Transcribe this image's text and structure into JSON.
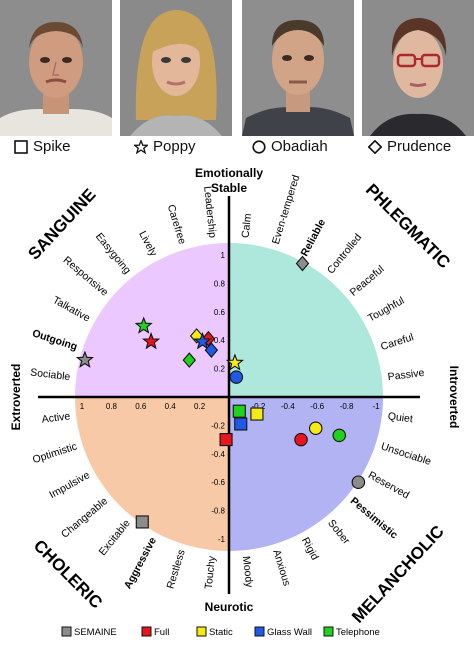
{
  "characters": [
    {
      "name": "Spike",
      "symbol": "square-icon"
    },
    {
      "name": "Poppy",
      "symbol": "star-icon"
    },
    {
      "name": "Obadiah",
      "symbol": "circle-icon"
    },
    {
      "name": "Prudence",
      "symbol": "diamond-icon"
    }
  ],
  "axes": {
    "top": "Emotionally\nStable",
    "bottom": "Neurotic",
    "left": "Extroverted",
    "right": "Introverted",
    "x_ticks": [
      "1",
      "0.8",
      "0.6",
      "0.4",
      "0.2",
      "-0.2",
      "-0.4",
      "-0.6",
      "-0.8",
      "-1"
    ],
    "y_ticks": [
      "1",
      "0.8",
      "0.6",
      "0.4",
      "0.2",
      "-0.2",
      "-0.4",
      "-0.6",
      "-0.8",
      "-1"
    ]
  },
  "quadrants": {
    "sanguine": {
      "title": "SANGUINE",
      "color": "#ebc8ff"
    },
    "phlegmatic": {
      "title": "PHLEGMATIC",
      "color": "#aee8dc"
    },
    "choleric": {
      "title": "CHOLERIC",
      "color": "#f8c9a6"
    },
    "melancholic": {
      "title": "MELANCHOLIC",
      "color": "#b1b3f2"
    }
  },
  "traits": {
    "sanguine": [
      "Sociable",
      "Outgoing",
      "Talkative",
      "Responsive",
      "Easygoing",
      "Lively",
      "Carefree",
      "Leadership"
    ],
    "phlegmatic": [
      "Calm",
      "Even-tempered",
      "Reliable",
      "Controlled",
      "Peaceful",
      "Toughful",
      "Careful",
      "Passive"
    ],
    "melancholic": [
      "Quiet",
      "Unsociable",
      "Reserved",
      "Pessimistic",
      "Sober",
      "Rigid",
      "Anxious",
      "Moody"
    ],
    "choleric": [
      "Touchy",
      "Restless",
      "Aggressive",
      "Excitable",
      "Changeable",
      "Impulsive",
      "Optimistic",
      "Active"
    ]
  },
  "legend": [
    {
      "label": "SEMAINE",
      "color": "#8c8c8c"
    },
    {
      "label": "Full",
      "color": "#e8141e"
    },
    {
      "label": "Static",
      "color": "#f5eb14"
    },
    {
      "label": "Glass Wall",
      "color": "#1e5ae6"
    },
    {
      "label": "Telephone",
      "color": "#1ed21e"
    }
  ],
  "chart_data": {
    "type": "scatter",
    "xlim": [
      1.1,
      -1.1
    ],
    "ylim": [
      -1.1,
      1.1
    ],
    "series": [
      {
        "name": "SEMAINE",
        "points": [
          {
            "character": "Prudence",
            "x": -0.5,
            "y": 0.94
          },
          {
            "character": "Poppy",
            "x": 0.98,
            "y": 0.26
          },
          {
            "character": "Obadiah",
            "x": -0.88,
            "y": -0.6
          },
          {
            "character": "Spike",
            "x": 0.59,
            "y": -0.88
          }
        ]
      },
      {
        "name": "Full",
        "points": [
          {
            "character": "Poppy",
            "x": 0.53,
            "y": 0.39
          },
          {
            "character": "Prudence",
            "x": 0.14,
            "y": 0.41
          },
          {
            "character": "Spike",
            "x": 0.02,
            "y": -0.3
          },
          {
            "character": "Obadiah",
            "x": -0.49,
            "y": -0.3
          }
        ]
      },
      {
        "name": "Static",
        "points": [
          {
            "character": "Prudence",
            "x": 0.22,
            "y": 0.43
          },
          {
            "character": "Poppy",
            "x": -0.04,
            "y": 0.24
          },
          {
            "character": "Spike",
            "x": -0.19,
            "y": -0.12
          },
          {
            "character": "Obadiah",
            "x": -0.59,
            "y": -0.22
          }
        ]
      },
      {
        "name": "Glass Wall",
        "points": [
          {
            "character": "Poppy",
            "x": 0.18,
            "y": 0.39
          },
          {
            "character": "Prudence",
            "x": 0.12,
            "y": 0.33
          },
          {
            "character": "Obadiah",
            "x": -0.05,
            "y": 0.14
          },
          {
            "character": "Spike",
            "x": -0.08,
            "y": -0.19
          }
        ]
      },
      {
        "name": "Telephone",
        "points": [
          {
            "character": "Poppy",
            "x": 0.58,
            "y": 0.5
          },
          {
            "character": "Prudence",
            "x": 0.27,
            "y": 0.26
          },
          {
            "character": "Spike",
            "x": -0.07,
            "y": -0.1
          },
          {
            "character": "Obadiah",
            "x": -0.75,
            "y": -0.27
          }
        ]
      }
    ]
  }
}
